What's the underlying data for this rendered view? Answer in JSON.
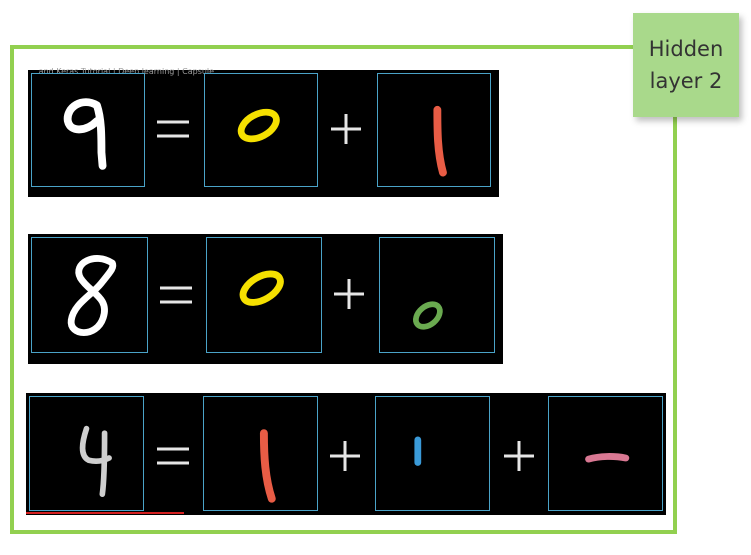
{
  "note": {
    "line1": "Hidden",
    "line2": "layer 2"
  },
  "rows": [
    {
      "input": "9",
      "parts": [
        "0",
        "1"
      ],
      "colors": [
        "#ffffff",
        "#f5e000",
        "#e85c45"
      ],
      "operators": [
        "=",
        "+"
      ],
      "title_text": "...and Keras Tutorial | Deep learning | Capsule"
    },
    {
      "input": "8",
      "parts": [
        "0",
        "0"
      ],
      "colors": [
        "#ffffff",
        "#f5e000",
        "#6aaa50"
      ],
      "operators": [
        "=",
        "+"
      ]
    },
    {
      "input": "4",
      "parts": [
        "1",
        "1",
        "—"
      ],
      "colors": [
        "#ffffff",
        "#e85c45",
        "#3a9ad8",
        "#d97893"
      ],
      "operators": [
        "=",
        "+",
        "+"
      ]
    }
  ],
  "colors": {
    "frame": "#92d050",
    "panel_border": "#4aa3c8",
    "note_bg": "#a9d98b"
  }
}
